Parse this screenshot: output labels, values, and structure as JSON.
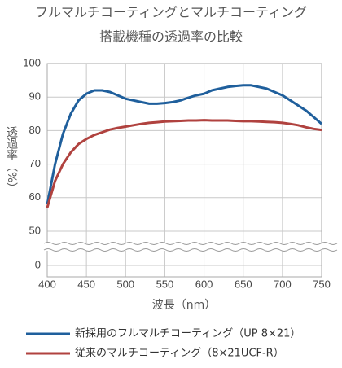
{
  "chart_data": {
    "type": "line",
    "title": "フルマルチコーティングとマルチコーティング",
    "subtitle": "搭載機種の透過率の比較",
    "y_label": "透過率（%）",
    "x_label": "波長（nm）",
    "x": [
      400,
      410,
      420,
      430,
      440,
      450,
      460,
      470,
      480,
      490,
      500,
      510,
      520,
      530,
      540,
      550,
      560,
      570,
      580,
      590,
      600,
      610,
      620,
      630,
      640,
      650,
      660,
      670,
      680,
      690,
      700,
      710,
      720,
      730,
      740,
      750
    ],
    "series": [
      {
        "name": "新採用のフルマルチコーティング（UP 8×21）",
        "color": "#1f5f9c",
        "values": [
          58,
          70,
          79,
          85,
          89,
          91,
          92,
          92,
          91.5,
          90.5,
          89.5,
          89,
          88.5,
          88,
          88,
          88.2,
          88.5,
          89,
          89.8,
          90.5,
          91,
          92,
          92.5,
          93,
          93.3,
          93.5,
          93.5,
          93,
          92.5,
          91.5,
          90.5,
          89,
          87.5,
          86,
          84,
          82
        ]
      },
      {
        "name": "従来のマルチコーティング（8×21UCF-R）",
        "color": "#b0423f",
        "values": [
          57,
          65,
          70,
          73.5,
          76,
          77.5,
          78.7,
          79.5,
          80.3,
          80.8,
          81.2,
          81.6,
          82,
          82.3,
          82.5,
          82.7,
          82.8,
          82.9,
          83,
          83,
          83.1,
          83,
          83,
          83,
          82.9,
          82.8,
          82.8,
          82.7,
          82.6,
          82.5,
          82.3,
          82,
          81.6,
          81,
          80.5,
          80.2
        ]
      }
    ],
    "xlim": [
      400,
      750
    ],
    "xticks": [
      400,
      450,
      500,
      550,
      600,
      650,
      700,
      750
    ],
    "ylim": [
      0,
      100
    ],
    "yticks": [
      0,
      50,
      60,
      70,
      80,
      90,
      100
    ],
    "axis_break": [
      0,
      50
    ],
    "grid": true
  }
}
